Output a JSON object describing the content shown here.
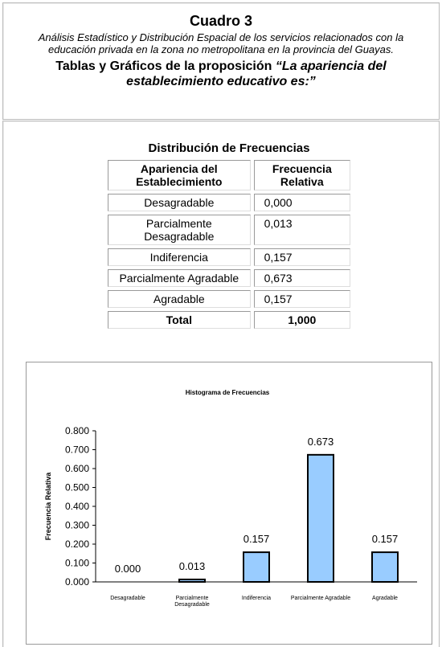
{
  "header": {
    "title": "Cuadro 3",
    "subtitle": "Análisis Estadístico y Distribución Espacial de los servicios relacionados con la educación privada en la zona no metropolitana en la provincia del Guayas.",
    "heading_text": "Tablas y Gráficos de la proposición",
    "heading_quote": "“La apariencia del establecimiento educativo es:”"
  },
  "table": {
    "title": "Distribución de Frecuencias",
    "columns": [
      "Apariencia del Establecimiento",
      "Frecuencia Relativa"
    ],
    "rows": [
      [
        "Desagradable",
        "0,000"
      ],
      [
        "Parcialmente Desagradable",
        "0,013"
      ],
      [
        "Indiferencia",
        "0,157"
      ],
      [
        "Parcialmente Agradable",
        "0,673"
      ],
      [
        "Agradable",
        "0,157"
      ]
    ],
    "total": [
      "Total",
      "1,000"
    ]
  },
  "chart_data": {
    "type": "bar",
    "title": "Histograma de Frecuencias",
    "y_label": "Frecuencia Relativa",
    "categories": [
      "Desagradable",
      "Parcialmente Desagradable",
      "Indiferencia",
      "Parcialmente Agradable",
      "Agradable"
    ],
    "values": [
      0,
      0.013,
      0.157,
      0.673,
      0.157
    ],
    "value_labels": [
      "0.000",
      "0.013",
      "0.157",
      "0.673",
      "0.157"
    ],
    "color": "#99ccff",
    "ylim": [
      0,
      0.8
    ],
    "yticks": [
      {
        "value": 0,
        "label": "0.000"
      },
      {
        "value": 0.1,
        "label": "0.100"
      },
      {
        "value": 0.2,
        "label": "0.200"
      },
      {
        "value": 0.3,
        "label": "0.300"
      },
      {
        "value": 0.4,
        "label": "0.400"
      },
      {
        "value": 0.5,
        "label": "0.500"
      },
      {
        "value": 0.6,
        "label": "0.600"
      },
      {
        "value": 0.7,
        "label": "0.700"
      },
      {
        "value": 0.8,
        "label": "0.800"
      }
    ],
    "grid": false
  }
}
